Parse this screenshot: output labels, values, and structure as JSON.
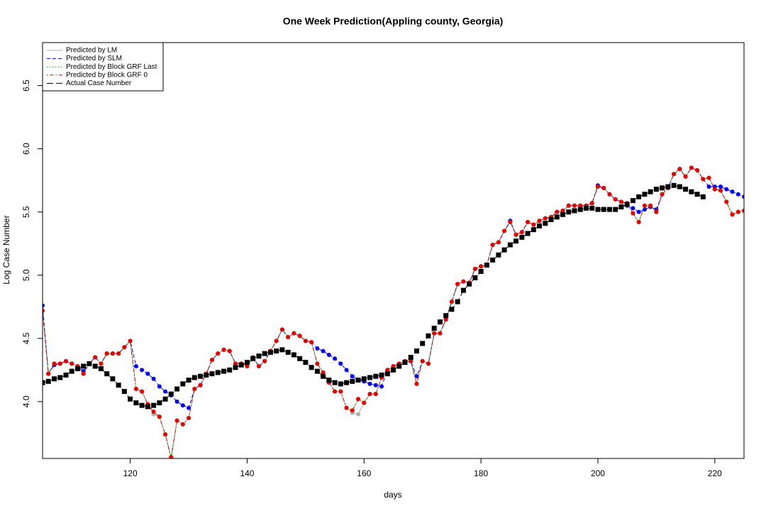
{
  "chart_data": {
    "type": "line",
    "title": "One Week Prediction(Appling county, Georgia)",
    "x_label": "days",
    "y_label": "Log Case Number",
    "xlim": [
      105,
      225
    ],
    "ylim": [
      3.55,
      6.84
    ],
    "xticks": [
      120,
      140,
      160,
      180,
      200,
      220
    ],
    "yticks": [
      {
        "value": 4,
        "label": "4.0"
      },
      {
        "value": 4.5,
        "label": "4.5"
      },
      {
        "value": 5,
        "label": "5.0"
      },
      {
        "value": 5.5,
        "label": "5.5"
      },
      {
        "value": 6,
        "label": "6.0"
      },
      {
        "value": 6.5,
        "label": "6.5"
      }
    ],
    "legend": "top-left",
    "x": [
      105,
      106,
      107,
      108,
      109,
      110,
      111,
      112,
      113,
      114,
      115,
      116,
      117,
      118,
      119,
      120,
      121,
      122,
      123,
      124,
      125,
      126,
      127,
      128,
      129,
      130,
      131,
      132,
      133,
      134,
      135,
      136,
      137,
      138,
      139,
      140,
      141,
      142,
      143,
      144,
      145,
      146,
      147,
      148,
      149,
      150,
      151,
      152,
      153,
      154,
      155,
      156,
      157,
      158,
      159,
      160,
      161,
      162,
      163,
      164,
      165,
      166,
      167,
      168,
      169,
      170,
      171,
      172,
      173,
      174,
      175,
      176,
      177,
      178,
      179,
      180,
      181,
      182,
      183,
      184,
      185,
      186,
      187,
      188,
      189,
      190,
      191,
      192,
      193,
      194,
      195,
      196,
      197,
      198,
      199,
      200,
      201,
      202,
      203,
      204,
      205,
      206,
      207,
      208,
      209,
      210,
      211,
      212,
      213,
      214,
      215,
      216,
      217,
      218,
      219,
      220,
      221,
      222,
      223,
      224,
      225
    ],
    "series": [
      {
        "name": "Predicted by LM",
        "color": "#b0b0b0",
        "line_style": "solid",
        "marker": "circle",
        "values": [
          4.72,
          4.22,
          4.3,
          4.3,
          4.32,
          4.3,
          4.28,
          4.22,
          4.3,
          4.35,
          4.3,
          4.38,
          4.38,
          4.38,
          4.43,
          4.48,
          4.1,
          4.08,
          3.98,
          3.9,
          3.88,
          3.74,
          3.54,
          3.85,
          3.82,
          3.87,
          4.1,
          4.13,
          4.22,
          4.33,
          4.38,
          4.41,
          4.4,
          4.3,
          4.3,
          4.28,
          4.35,
          4.28,
          4.32,
          4.4,
          4.48,
          4.57,
          4.51,
          4.54,
          4.52,
          4.48,
          4.47,
          4.3,
          4.23,
          4.15,
          4.08,
          4.08,
          3.95,
          3.91,
          3.9,
          3.99,
          4.06,
          4.06,
          4.19,
          4.25,
          4.28,
          4.3,
          4.32,
          4.32,
          4.14,
          4.32,
          4.3,
          4.54,
          4.54,
          4.65,
          4.79,
          4.93,
          4.95,
          4.94,
          5.05,
          5.07,
          5.08,
          5.24,
          5.26,
          5.35,
          5.42,
          5.32,
          5.34,
          5.42,
          5.4,
          5.43,
          5.45,
          5.46,
          5.5,
          5.51,
          5.55,
          5.55,
          5.55,
          5.55,
          5.57,
          5.7,
          5.69,
          5.64,
          5.6,
          5.58,
          5.57,
          5.49,
          5.42,
          5.55,
          5.55,
          5.5,
          5.64,
          5.69,
          5.8,
          5.84,
          5.78,
          5.85,
          5.83,
          5.76,
          5.77,
          5.68,
          5.67,
          5.58,
          5.48,
          5.5,
          5.51
        ]
      },
      {
        "name": "Predicted by SLM",
        "color": "#0000ff",
        "line_style": "dashed",
        "marker": "circle",
        "values": [
          4.76,
          4.22,
          4.29,
          4.3,
          4.32,
          4.3,
          4.28,
          4.24,
          4.3,
          4.35,
          4.3,
          4.38,
          4.38,
          4.38,
          4.43,
          4.48,
          4.28,
          4.25,
          4.22,
          4.18,
          4.12,
          4.08,
          4.05,
          4.0,
          3.97,
          3.95,
          4.1,
          4.13,
          4.22,
          4.33,
          4.38,
          4.41,
          4.4,
          4.3,
          4.3,
          4.28,
          4.35,
          4.28,
          4.32,
          4.4,
          4.48,
          4.57,
          4.51,
          4.54,
          4.52,
          4.48,
          4.47,
          4.42,
          4.4,
          4.37,
          4.34,
          4.3,
          4.25,
          4.2,
          4.17,
          4.16,
          4.14,
          4.13,
          4.12,
          4.25,
          4.28,
          4.3,
          4.32,
          4.32,
          4.2,
          4.32,
          4.3,
          4.54,
          4.54,
          4.65,
          4.79,
          4.93,
          4.95,
          4.94,
          5.05,
          5.07,
          5.08,
          5.24,
          5.26,
          5.35,
          5.43,
          5.32,
          5.34,
          5.42,
          5.4,
          5.43,
          5.45,
          5.46,
          5.5,
          5.51,
          5.55,
          5.55,
          5.55,
          5.55,
          5.57,
          5.71,
          5.69,
          5.64,
          5.6,
          5.58,
          5.55,
          5.53,
          5.5,
          5.52,
          5.54,
          5.52,
          5.64,
          5.69,
          5.8,
          5.84,
          5.78,
          5.85,
          5.83,
          5.76,
          5.7,
          5.7,
          5.7,
          5.68,
          5.66,
          5.64,
          5.62
        ]
      },
      {
        "name": "Predicted by Block GRF Last",
        "color": "#00c000",
        "line_style": "dotted",
        "marker": "circle",
        "values": [
          4.72,
          4.22,
          4.3,
          4.3,
          4.32,
          4.3,
          4.28,
          4.22,
          4.3,
          4.35,
          4.3,
          4.38,
          4.38,
          4.38,
          4.43,
          4.48,
          4.1,
          4.08,
          3.98,
          3.92,
          3.88,
          3.74,
          3.56,
          3.85,
          3.82,
          3.87,
          4.1,
          4.13,
          4.22,
          4.33,
          4.38,
          4.41,
          4.4,
          4.3,
          4.3,
          4.28,
          4.35,
          4.28,
          4.32,
          4.4,
          4.48,
          4.57,
          4.51,
          4.54,
          4.52,
          4.48,
          4.47,
          4.3,
          4.23,
          4.15,
          4.08,
          4.08,
          3.95,
          3.93,
          4.02,
          3.99,
          4.06,
          4.06,
          4.19,
          4.25,
          4.28,
          4.3,
          4.32,
          4.32,
          4.14,
          4.32,
          4.3,
          4.54,
          4.54,
          4.65,
          4.79,
          4.93,
          4.95,
          4.94,
          5.05,
          5.07,
          5.08,
          5.24,
          5.26,
          5.35,
          5.42,
          5.32,
          5.34,
          5.42,
          5.4,
          5.43,
          5.45,
          5.46,
          5.5,
          5.51,
          5.55,
          5.55,
          5.55,
          5.55,
          5.57,
          5.7,
          5.69,
          5.64,
          5.6,
          5.58,
          5.57,
          5.49,
          5.42,
          5.55,
          5.55,
          5.5,
          5.64,
          5.69,
          5.8,
          5.84,
          5.78,
          5.85,
          5.83,
          5.76,
          5.77,
          5.68,
          5.67,
          5.58,
          5.48,
          5.5,
          5.51
        ]
      },
      {
        "name": "Predicted by Block GRF 0",
        "color": "#ee0000",
        "line_style": "dotdash",
        "marker": "circle",
        "values": [
          4.72,
          4.22,
          4.3,
          4.3,
          4.32,
          4.3,
          4.28,
          4.22,
          4.3,
          4.35,
          4.3,
          4.38,
          4.38,
          4.38,
          4.43,
          4.48,
          4.1,
          4.08,
          3.98,
          3.92,
          3.88,
          3.74,
          3.56,
          3.85,
          3.82,
          3.87,
          4.1,
          4.13,
          4.22,
          4.33,
          4.38,
          4.41,
          4.4,
          4.3,
          4.3,
          4.28,
          4.35,
          4.28,
          4.32,
          4.4,
          4.48,
          4.57,
          4.51,
          4.54,
          4.52,
          4.48,
          4.47,
          4.3,
          4.23,
          4.15,
          4.08,
          4.08,
          3.95,
          3.93,
          4.02,
          3.99,
          4.06,
          4.06,
          4.19,
          4.25,
          4.28,
          4.3,
          4.32,
          4.32,
          4.14,
          4.32,
          4.3,
          4.54,
          4.54,
          4.65,
          4.79,
          4.93,
          4.95,
          4.94,
          5.05,
          5.07,
          5.08,
          5.24,
          5.26,
          5.35,
          5.42,
          5.32,
          5.34,
          5.42,
          5.4,
          5.43,
          5.45,
          5.46,
          5.5,
          5.51,
          5.55,
          5.55,
          5.55,
          5.55,
          5.57,
          5.7,
          5.69,
          5.64,
          5.6,
          5.58,
          5.57,
          5.49,
          5.42,
          5.55,
          5.55,
          5.5,
          5.64,
          5.69,
          5.8,
          5.84,
          5.78,
          5.85,
          5.83,
          5.76,
          5.77,
          5.68,
          5.67,
          5.58,
          5.48,
          5.5,
          5.51
        ]
      },
      {
        "name": "Actual Case Number",
        "color": "#000000",
        "line_style": "longdash",
        "marker": "square",
        "values": [
          4.15,
          4.16,
          4.18,
          4.19,
          4.21,
          4.24,
          4.26,
          4.28,
          4.3,
          4.28,
          4.26,
          4.22,
          4.18,
          4.13,
          4.08,
          4.02,
          3.99,
          3.97,
          3.96,
          3.97,
          3.99,
          4.02,
          4.06,
          4.1,
          4.14,
          4.17,
          4.19,
          4.2,
          4.21,
          4.22,
          4.23,
          4.24,
          4.25,
          4.27,
          4.29,
          4.31,
          4.34,
          4.36,
          4.38,
          4.39,
          4.4,
          4.41,
          4.39,
          4.37,
          4.34,
          4.31,
          4.27,
          4.24,
          4.2,
          4.17,
          4.15,
          4.14,
          4.15,
          4.16,
          4.17,
          4.18,
          4.19,
          4.2,
          4.21,
          4.22,
          4.25,
          4.28,
          4.31,
          4.35,
          4.4,
          4.46,
          4.52,
          4.58,
          4.63,
          4.68,
          4.73,
          4.79,
          4.88,
          4.93,
          4.98,
          5.03,
          5.08,
          5.12,
          5.16,
          5.2,
          5.24,
          5.27,
          5.3,
          5.33,
          5.36,
          5.39,
          5.41,
          5.44,
          5.46,
          5.48,
          5.5,
          5.51,
          5.52,
          5.53,
          5.53,
          5.52,
          5.52,
          5.52,
          5.52,
          5.54,
          5.56,
          5.59,
          5.62,
          5.64,
          5.66,
          5.68,
          5.69,
          5.7,
          5.71,
          5.7,
          5.68,
          5.66,
          5.64,
          5.62,
          null,
          null,
          null,
          null,
          null,
          null,
          null
        ]
      }
    ]
  }
}
